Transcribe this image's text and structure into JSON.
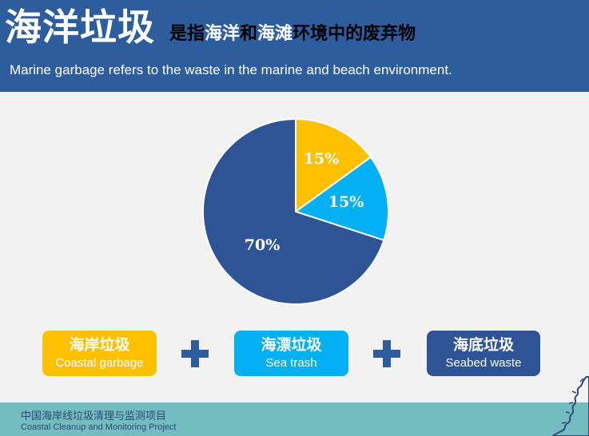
{
  "header": {
    "title": "海洋垃圾",
    "subtitle_parts": [
      {
        "text": "是指",
        "style": "k"
      },
      {
        "text": "海洋",
        "style": "w"
      },
      {
        "text": "和",
        "style": "k"
      },
      {
        "text": "海滩",
        "style": "w"
      },
      {
        "text": "环境中的废弃物",
        "style": "k"
      }
    ],
    "subtitle_en": "Marine garbage refers to the waste in the marine and beach environment."
  },
  "chart_data": {
    "type": "pie",
    "title": "",
    "slices": [
      {
        "label": "15%",
        "value": 15,
        "color": "#ffc000"
      },
      {
        "label": "15%",
        "value": 15,
        "color": "#00b0f0"
      },
      {
        "label": "70%",
        "value": 70,
        "color": "#2e5496"
      }
    ]
  },
  "categories": [
    {
      "cn": "海岸垃圾",
      "en": "Coastal garbage",
      "color": "#ffc000"
    },
    {
      "cn": "海漂垃圾",
      "en": "Sea trash",
      "color": "#00b0f0"
    },
    {
      "cn": "海底垃圾",
      "en": "Seabed waste",
      "color": "#2e5496"
    }
  ],
  "footer": {
    "cn": "中国海岸线垃圾清理与监测项目",
    "en": "Coastal Cleanup and Monitoring Project"
  },
  "colors": {
    "header_bg": "#2e5d9e",
    "footer_bg": "#73bcbf",
    "plus": "#2e5d9e"
  },
  "icons": {
    "plus": "plus-icon",
    "map_decoration": "coastline-map-icon"
  }
}
